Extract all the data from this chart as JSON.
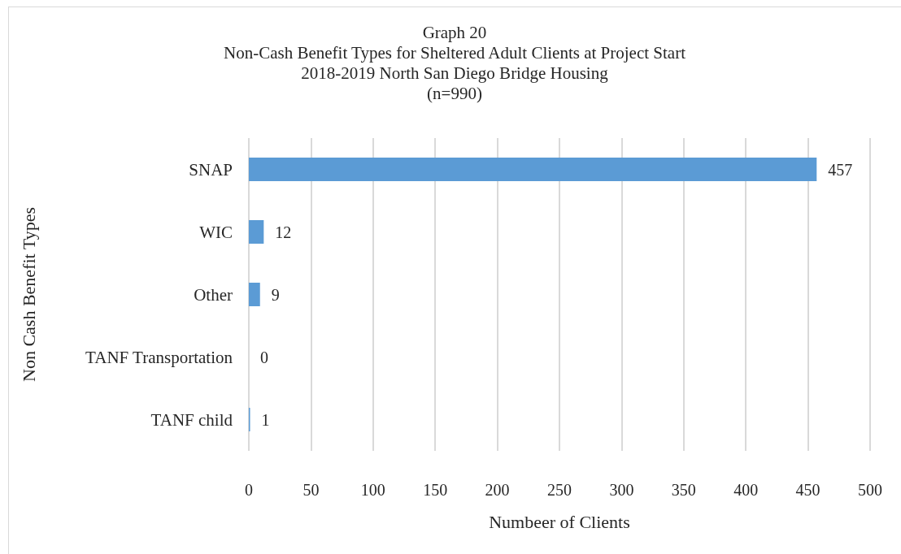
{
  "chart_data": {
    "type": "bar",
    "orientation": "horizontal",
    "title": "Graph 20\nNon-Cash Benefit Types for Sheltered Adult Clients at Project Start",
    "subtitle": "2018-2019 North San Diego Bridge Housing\n(n=990)",
    "xlabel": "Numbeer of Clients",
    "ylabel": "Non Cash Benefit Types",
    "categories": [
      "SNAP",
      "WIC",
      "Other",
      "TANF Transportation",
      "TANF child"
    ],
    "values": [
      457,
      12,
      9,
      0,
      1
    ],
    "color": "#5b9bd5",
    "xlim": [
      0,
      500
    ],
    "xticks": [
      0,
      50,
      100,
      150,
      200,
      250,
      300,
      350,
      400,
      450,
      500
    ],
    "grid": "x",
    "data_labels": true
  }
}
